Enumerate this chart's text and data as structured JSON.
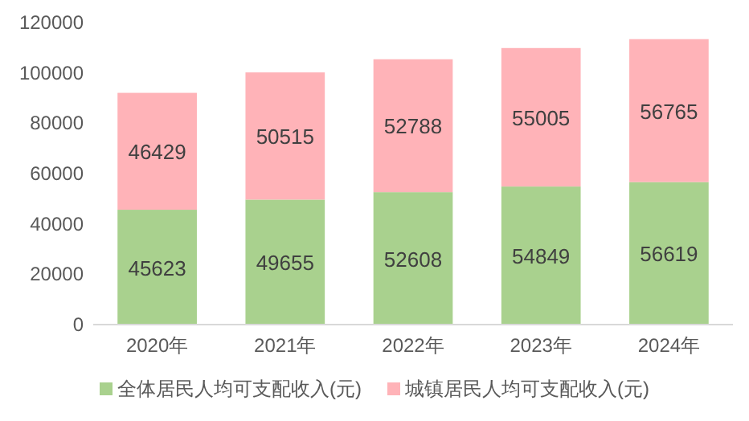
{
  "chart_data": {
    "type": "bar",
    "stacked": true,
    "categories": [
      "2020年",
      "2021年",
      "2022年",
      "2023年",
      "2024年"
    ],
    "series": [
      {
        "name": "全体居民人均可支配收入(元)",
        "color": "#a9d18e",
        "values": [
          45623,
          49655,
          52608,
          54849,
          56619
        ]
      },
      {
        "name": "城镇居民人均可支配收入(元)",
        "color": "#ffb3b8",
        "values": [
          46429,
          50515,
          52788,
          55005,
          56765
        ]
      }
    ],
    "ylim": [
      0,
      120000
    ],
    "yticks": [
      0,
      20000,
      40000,
      60000,
      80000,
      100000,
      120000
    ],
    "data_labels": true,
    "legend": "bottom",
    "grid": false
  }
}
